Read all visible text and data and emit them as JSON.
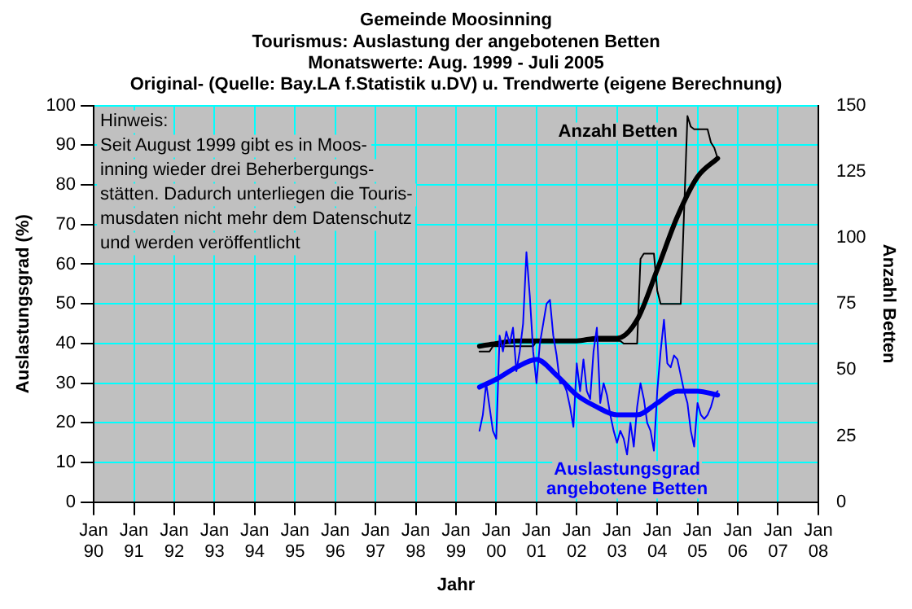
{
  "chart_data": {
    "type": "line",
    "title": "Gemeinde Moosinning",
    "subtitle": "Tourismus: Auslastung der angebotenen Betten\nMonatswerte: Aug. 1999 - Juli 2005\nOriginal- (Quelle: Bay.LA f.Statistik u.DV) u. Trendwerte (eigene Berechnung)",
    "xlabel": "Jahr",
    "ylabel": "Auslastungsgrad (%)",
    "y2label": "Anzahl Betten",
    "annotations": [
      "Hinweis:\nSeit August 1999 gibt es in Moos-\ninning wieder drei Beherbergungs-\nstätten. Dadurch unterliegen die Touris-\nmusdaten nicht mehr dem Datenschutz\nund werden veröffentlicht"
    ],
    "x": [
      "1999-08",
      "1999-09",
      "1999-10",
      "1999-11",
      "1999-12",
      "2000-01",
      "2000-02",
      "2000-03",
      "2000-04",
      "2000-05",
      "2000-06",
      "2000-07",
      "2000-08",
      "2000-09",
      "2000-10",
      "2000-11",
      "2000-12",
      "2001-01",
      "2001-02",
      "2001-03",
      "2001-04",
      "2001-05",
      "2001-06",
      "2001-07",
      "2001-08",
      "2001-09",
      "2001-10",
      "2001-11",
      "2001-12",
      "2002-01",
      "2002-02",
      "2002-03",
      "2002-04",
      "2002-05",
      "2002-06",
      "2002-07",
      "2002-08",
      "2002-09",
      "2002-10",
      "2002-11",
      "2002-12",
      "2003-01",
      "2003-02",
      "2003-03",
      "2003-04",
      "2003-05",
      "2003-06",
      "2003-07",
      "2003-08",
      "2003-09",
      "2003-10",
      "2003-11",
      "2003-12",
      "2004-01",
      "2004-02",
      "2004-03",
      "2004-04",
      "2004-05",
      "2004-06",
      "2004-07",
      "2004-08",
      "2004-09",
      "2004-10",
      "2004-11",
      "2004-12",
      "2005-01",
      "2005-02",
      "2005-03",
      "2005-04",
      "2005-05",
      "2005-06",
      "2005-07"
    ],
    "series": [
      {
        "name": "Auslastungsgrad angebotene Betten",
        "color": "#0000ff",
        "values": [
          18,
          22,
          30,
          24,
          18,
          16,
          42,
          38,
          43,
          40,
          44,
          33,
          38,
          45,
          63,
          52,
          38,
          30,
          40,
          45,
          50,
          51,
          42,
          37,
          30,
          30,
          28,
          24,
          19,
          35,
          28,
          36,
          28,
          26,
          38,
          44,
          25,
          30,
          27,
          22,
          18,
          15,
          18,
          16,
          12,
          20,
          14,
          24,
          30,
          26,
          20,
          18,
          13,
          28,
          38,
          46,
          35,
          34,
          37,
          36,
          32,
          28,
          25,
          18,
          14,
          25,
          22,
          21,
          22,
          24,
          27,
          28
        ]
      },
      {
        "color": "#0000ff",
        "x": [
          "1999-08",
          "2000-01",
          "2000-07",
          "2001-01",
          "2001-07",
          "2002-01",
          "2002-07",
          "2003-01",
          "2003-07",
          "2004-01",
          "2004-07",
          "2005-01",
          "2005-07"
        ],
        "values": [
          29,
          31,
          34,
          36,
          32,
          27,
          24,
          22,
          22,
          25,
          28,
          28,
          27
        ]
      },
      {
        "name": "Anzahl Betten",
        "color": "#000000",
        "axis": "y2",
        "values": [
          57,
          57,
          57,
          57,
          59,
          59,
          59,
          59,
          59,
          59,
          59,
          59,
          59,
          59,
          59,
          59,
          59,
          61,
          61,
          61,
          61,
          61,
          61,
          61,
          61,
          61,
          61,
          61,
          61,
          61,
          61,
          61,
          61,
          61,
          61,
          61,
          61,
          61,
          61,
          61,
          61,
          61,
          61,
          60,
          60,
          60,
          60,
          60,
          92,
          94,
          94,
          94,
          94,
          80,
          75,
          75,
          75,
          75,
          75,
          75,
          75,
          110,
          146,
          142,
          141,
          141,
          141,
          141,
          141,
          136,
          134,
          130
        ]
      },
      {
        "color": "#000000",
        "axis": "y2",
        "x": [
          "1999-08",
          "2000-01",
          "2000-07",
          "2001-01",
          "2001-07",
          "2002-01",
          "2002-07",
          "2003-01",
          "2003-07",
          "2004-01",
          "2004-07",
          "2005-01",
          "2005-07"
        ],
        "values": [
          59,
          60,
          61,
          61,
          61,
          61,
          62,
          62,
          69,
          88,
          108,
          123,
          130
        ]
      }
    ],
    "xlim": [
      "1990-01",
      "2008-01"
    ],
    "xticks": [
      {
        "value": "1990-01",
        "label": "Jan 90"
      },
      {
        "value": "1991-01",
        "label": "Jan 91"
      },
      {
        "value": "1992-01",
        "label": "Jan 92"
      },
      {
        "value": "1993-01",
        "label": "Jan 93"
      },
      {
        "value": "1994-01",
        "label": "Jan 94"
      },
      {
        "value": "1995-01",
        "label": "Jan 95"
      },
      {
        "value": "1996-01",
        "label": "Jan 96"
      },
      {
        "value": "1997-01",
        "label": "Jan 97"
      },
      {
        "value": "1998-01",
        "label": "Jan 98"
      },
      {
        "value": "1999-01",
        "label": "Jan 99"
      },
      {
        "value": "2000-01",
        "label": "Jan 00"
      },
      {
        "value": "2001-01",
        "label": "Jan 01"
      },
      {
        "value": "2002-01",
        "label": "Jan 02"
      },
      {
        "value": "2003-01",
        "label": "Jan 03"
      },
      {
        "value": "2004-01",
        "label": "Jan 04"
      },
      {
        "value": "2005-01",
        "label": "Jan 05"
      },
      {
        "value": "2006-01",
        "label": "Jan 06"
      },
      {
        "value": "2007-01",
        "label": "Jan 07"
      },
      {
        "value": "2008-01",
        "label": "Jan 08"
      }
    ],
    "ylim": [
      0,
      100
    ],
    "yticks": [
      0,
      10,
      20,
      30,
      40,
      50,
      60,
      70,
      80,
      90,
      100
    ],
    "y2lim": [
      0,
      150
    ],
    "y2ticks": [
      0,
      25,
      50,
      75,
      100,
      125,
      150
    ],
    "grid": true,
    "legend": false,
    "marker": "none",
    "line_style": "solid"
  }
}
